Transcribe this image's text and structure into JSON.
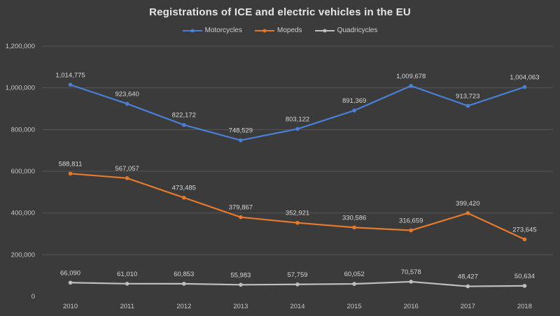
{
  "chart_data": {
    "type": "line",
    "title": "Registrations of ICE and  electric vehicles in the EU",
    "xlabel": "",
    "ylabel": "",
    "categories": [
      "2010",
      "2011",
      "2012",
      "2013",
      "2014",
      "2015",
      "2016",
      "2017",
      "2018"
    ],
    "ylim": [
      0,
      1200000
    ],
    "yticks": [
      0,
      200000,
      400000,
      600000,
      800000,
      1000000,
      1200000
    ],
    "ytick_labels": [
      "0",
      "200,000",
      "400,000",
      "600,000",
      "800,000",
      "1,000,000",
      "1,200,000"
    ],
    "grid": true,
    "legend_position": "top",
    "series": [
      {
        "name": "Motorcycles",
        "color": "#4a7fd6",
        "values": [
          1014775,
          923640,
          822172,
          748529,
          803122,
          891369,
          1009678,
          913723,
          1004063
        ],
        "labels": [
          "1,014,775",
          "923,640",
          "822,172",
          "748,529",
          "803,122",
          "891,369",
          "1,009,678",
          "913,723",
          "1,004,063"
        ]
      },
      {
        "name": "Mopeds",
        "color": "#e57a2c",
        "values": [
          588811,
          567057,
          473485,
          379867,
          352921,
          330586,
          316659,
          399420,
          273645
        ],
        "labels": [
          "588,811",
          "567,057",
          "473,485",
          "379,867",
          "352,921",
          "330,586",
          "316,659",
          "399,420",
          "273,645"
        ]
      },
      {
        "name": "Quadricycles",
        "color": "#bfbfbf",
        "values": [
          66090,
          61010,
          60853,
          55983,
          57759,
          60052,
          70578,
          48427,
          50634
        ],
        "labels": [
          "66,090",
          "61,010",
          "60,853",
          "55,983",
          "57,759",
          "60,052",
          "70,578",
          "48,427",
          "50,634"
        ]
      }
    ]
  }
}
